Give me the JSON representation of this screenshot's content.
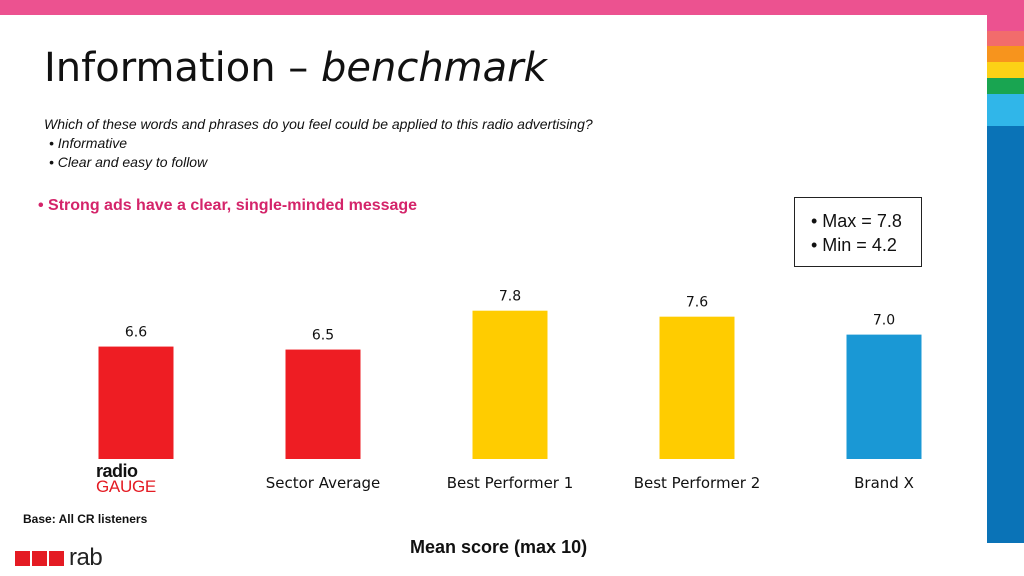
{
  "slide": {
    "title_main": "Information – ",
    "title_italic": "benchmark",
    "question": "Which of these words and phrases do you feel could be applied to this radio advertising?",
    "options": [
      "• Informative",
      "• Clear and easy to follow"
    ],
    "highlight": "• Strong ads have a clear, single-minded message",
    "stats": [
      "• Max = 7.8",
      "• Min = 4.2"
    ],
    "base_note": "Base: All CR listeners",
    "logo_radiogauge_line1": "radio",
    "logo_radiogauge_line2": "GAUGE",
    "logo_rab": "rab",
    "stripe_colors": [
      "#ec5290",
      "#f26c6c",
      "#f7941d",
      "#fcd116",
      "#19a551",
      "#30b6e9"
    ]
  },
  "chart_data": {
    "type": "bar",
    "categories": [
      "radio GAUGE",
      "Sector Average",
      "Best Performer 1",
      "Best Performer 2",
      "Brand X"
    ],
    "category_labels_shown": [
      "",
      "Sector Average",
      "Best Performer 1",
      "Best Performer 2",
      "Brand X"
    ],
    "values": [
      6.6,
      6.5,
      7.8,
      7.6,
      7.0
    ],
    "value_labels": [
      "6.6",
      "6.5",
      "7.8",
      "7.6",
      "7.0"
    ],
    "colors": [
      "#ee1d23",
      "#ee1d23",
      "#ffcc00",
      "#ffcc00",
      "#1a98d5"
    ],
    "xlabel": "Mean score (max 10)",
    "ylabel": "",
    "ylim": [
      0,
      10
    ],
    "grid": false,
    "legend": "none"
  }
}
